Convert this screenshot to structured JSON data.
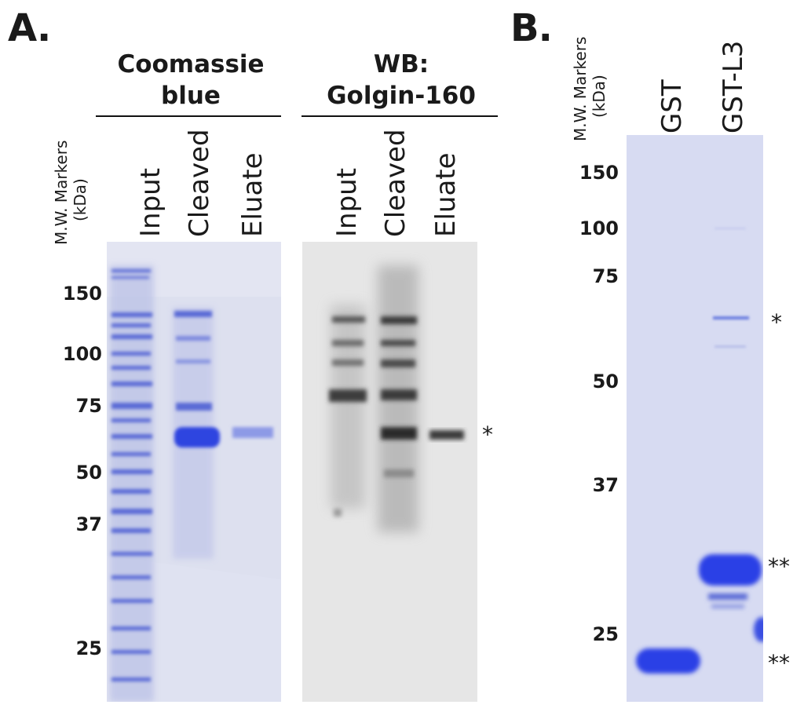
{
  "panelA": {
    "label": "A.",
    "coomassie_heading": [
      "Coomassie",
      "blue"
    ],
    "wb_heading": [
      "WB:",
      "Golgin-160"
    ],
    "mw_title": [
      "M.W. Markers",
      "(kDa)"
    ],
    "coomassie_lanes": [
      "Input",
      "Cleaved",
      "Eluate"
    ],
    "wb_lanes": [
      "Input",
      "Cleaved",
      "Eluate"
    ],
    "mw_markers": [
      "150",
      "100",
      "75",
      "50",
      "37",
      "25"
    ],
    "band_marker": "*"
  },
  "panelB": {
    "label": "B.",
    "mw_title": [
      "M.W. Markers",
      "(kDa)"
    ],
    "lanes": [
      "GST",
      "GST-L3"
    ],
    "mw_markers": [
      "150",
      "100",
      "75",
      "50",
      "37",
      "25"
    ],
    "band_markers": [
      "*",
      "**",
      "**"
    ]
  },
  "colors": {
    "gel_background": "#dce0f0",
    "coomassie_band": "#3a4fe0",
    "wb_background": "#e6e6e6",
    "wb_band": "#2e2e2e"
  }
}
